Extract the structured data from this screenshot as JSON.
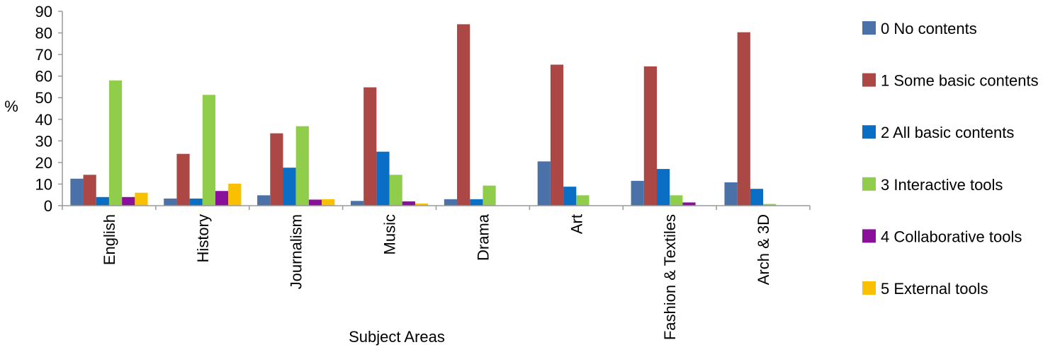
{
  "chart_data": {
    "type": "bar",
    "title": "",
    "xlabel": "Subject Areas",
    "ylabel": "%",
    "ylim": [
      0,
      90
    ],
    "yticks": [
      0,
      10,
      20,
      30,
      40,
      50,
      60,
      70,
      80,
      90
    ],
    "grid": false,
    "legend_position": "right",
    "categories": [
      "English",
      "History",
      "Journalism",
      "Music",
      "Drama",
      "Art",
      "Fashion & Textiles",
      "Arch & 3D"
    ],
    "series": [
      {
        "name": "0 No contents",
        "color": "#4a72a8",
        "values": [
          12.5,
          3.3,
          4.8,
          2.2,
          3.0,
          20.5,
          11.5,
          10.8
        ]
      },
      {
        "name": "1 Some basic contents",
        "color": "#ab4744",
        "values": [
          14.3,
          24.0,
          33.5,
          54.8,
          84.0,
          65.3,
          64.5,
          80.3
        ]
      },
      {
        "name": "2 All basic contents",
        "color": "#0a6fc4",
        "values": [
          4.0,
          3.3,
          17.6,
          25.0,
          3.0,
          8.8,
          17.0,
          7.8
        ]
      },
      {
        "name": "3 Interactive tools",
        "color": "#8fcd4a",
        "values": [
          58.0,
          51.3,
          36.8,
          14.3,
          9.3,
          4.8,
          4.8,
          0.8
        ]
      },
      {
        "name": "4 Collaborative tools",
        "color": "#8a0f9a",
        "values": [
          4.0,
          6.8,
          2.8,
          2.0,
          0,
          0,
          1.5,
          0
        ]
      },
      {
        "name": "5 External tools",
        "color": "#f9c000",
        "values": [
          6.0,
          10.2,
          3.0,
          1.0,
          0,
          0,
          0,
          0
        ]
      }
    ]
  }
}
